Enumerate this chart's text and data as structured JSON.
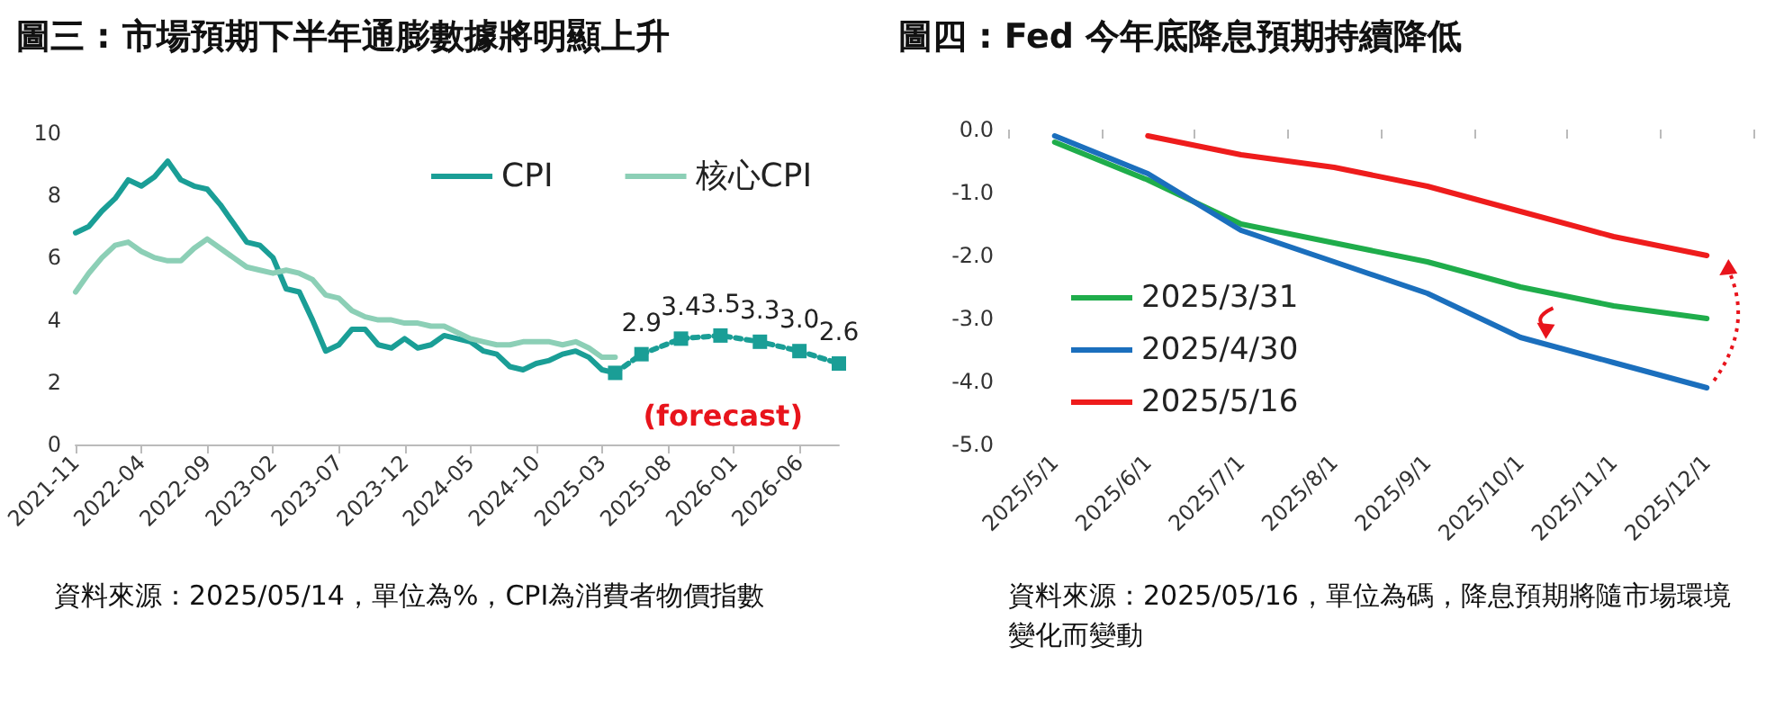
{
  "chart_data": [
    {
      "type": "line",
      "title": "圖三 : 市場預期下半年通膨數據將明顯上升",
      "categories": [
        "2021-11",
        null,
        null,
        null,
        null,
        "2022-04",
        null,
        null,
        null,
        null,
        "2022-09",
        null,
        null,
        null,
        null,
        "2023-02",
        null,
        null,
        null,
        null,
        "2023-07",
        null,
        null,
        null,
        null,
        "2023-12",
        null,
        null,
        null,
        null,
        "2024-05",
        null,
        null,
        null,
        null,
        "2024-10",
        null,
        null,
        null,
        null,
        "2025-03",
        null,
        null,
        null,
        null,
        "2025-08",
        null,
        null,
        null,
        null,
        "2026-01",
        null,
        null,
        null,
        null,
        "2026-06",
        null,
        null,
        null
      ],
      "series": [
        {
          "name": "CPI",
          "color": "#1a9e96",
          "values": [
            6.8,
            7.0,
            7.5,
            7.9,
            8.5,
            8.3,
            8.6,
            9.1,
            8.5,
            8.3,
            8.2,
            7.7,
            7.1,
            6.5,
            6.4,
            6.0,
            5.0,
            4.9,
            4.0,
            3.0,
            3.2,
            3.7,
            3.7,
            3.2,
            3.1,
            3.4,
            3.1,
            3.2,
            3.5,
            3.4,
            3.3,
            3.0,
            2.9,
            2.5,
            2.4,
            2.6,
            2.7,
            2.9,
            3.0,
            2.8,
            2.4,
            2.3,
            null,
            null,
            null,
            null,
            null,
            null,
            null,
            null,
            null,
            null,
            null,
            null,
            null,
            null,
            null,
            null,
            null
          ]
        },
        {
          "name": "核心CPI",
          "color": "#8ccfb6",
          "values": [
            4.9,
            5.5,
            6.0,
            6.4,
            6.5,
            6.2,
            6.0,
            5.9,
            5.9,
            6.3,
            6.6,
            6.3,
            6.0,
            5.7,
            5.6,
            5.5,
            5.6,
            5.5,
            5.3,
            4.8,
            4.7,
            4.3,
            4.1,
            4.0,
            4.0,
            3.9,
            3.9,
            3.8,
            3.8,
            3.6,
            3.4,
            3.3,
            3.2,
            3.2,
            3.3,
            3.3,
            3.3,
            3.2,
            3.3,
            3.1,
            2.8,
            2.8,
            null,
            null,
            null,
            null,
            null,
            null,
            null,
            null,
            null,
            null,
            null,
            null,
            null,
            null,
            null,
            null,
            null
          ]
        },
        {
          "color": "#1a9e96",
          "line_style": "dotted",
          "marker": "square",
          "values": [
            null,
            null,
            null,
            null,
            null,
            null,
            null,
            null,
            null,
            null,
            null,
            null,
            null,
            null,
            null,
            null,
            null,
            null,
            null,
            null,
            null,
            null,
            null,
            null,
            null,
            null,
            null,
            null,
            null,
            null,
            null,
            null,
            null,
            null,
            null,
            null,
            null,
            null,
            null,
            null,
            null,
            2.3,
            null,
            2.9,
            null,
            null,
            3.4,
            null,
            null,
            3.5,
            null,
            null,
            3.3,
            null,
            null,
            3.0,
            null,
            null,
            2.6
          ],
          "value_labels": [
            null,
            null,
            null,
            null,
            null,
            null,
            null,
            null,
            null,
            null,
            null,
            null,
            null,
            null,
            null,
            null,
            null,
            null,
            null,
            null,
            null,
            null,
            null,
            null,
            null,
            null,
            null,
            null,
            null,
            null,
            null,
            null,
            null,
            null,
            null,
            null,
            null,
            null,
            null,
            null,
            null,
            null,
            null,
            "2.9",
            null,
            null,
            "3.4",
            null,
            null,
            "3.5",
            null,
            null,
            "3.3",
            null,
            null,
            "3.0",
            null,
            null,
            "2.6"
          ]
        }
      ],
      "marker": "none",
      "ylim": [
        0,
        10
      ],
      "yticks": [
        0,
        2,
        4,
        6,
        8,
        10
      ],
      "legend": "top right",
      "annotations": [
        "(forecast)",
        "資料來源：2025/05/14，單位為%，CPI為消費者物價指數"
      ]
    },
    {
      "type": "line",
      "title": "圖四 : Fed 今年底降息預期持續降低",
      "categories": [
        "2025/5/1",
        "2025/6/1",
        "2025/7/1",
        "2025/8/1",
        "2025/9/1",
        "2025/10/1",
        "2025/11/1",
        "2025/12/1"
      ],
      "series": [
        {
          "name": "2025/3/31",
          "color": "#1fad4b",
          "values": [
            -0.2,
            -0.8,
            -1.5,
            -1.8,
            -2.1,
            -2.5,
            -2.8,
            -3.0
          ]
        },
        {
          "name": "2025/4/30",
          "color": "#1b6fbd",
          "values": [
            -0.1,
            -0.7,
            -1.6,
            -2.1,
            -2.6,
            -3.3,
            -3.7,
            -4.1
          ]
        },
        {
          "name": "2025/5/16",
          "color": "#ee1c1c",
          "values": [
            null,
            -0.1,
            -0.4,
            -0.6,
            -0.9,
            -1.3,
            -1.7,
            -2.0
          ]
        }
      ],
      "marker": "none",
      "ylim": [
        -5,
        0
      ],
      "yticks": [
        {
          "value": -5,
          "label": "-5.0"
        },
        {
          "value": -4,
          "label": "-4.0"
        },
        {
          "value": -3,
          "label": "-3.0"
        },
        {
          "value": -2,
          "label": "-2.0"
        },
        {
          "value": -1,
          "label": "-1.0"
        },
        {
          "value": 0,
          "label": "0.0"
        }
      ],
      "legend": "bottom left",
      "annotations": [
        "資料來源：2025/05/16，單位為碼，降息預期將隨市場環境變化而變動"
      ]
    }
  ]
}
